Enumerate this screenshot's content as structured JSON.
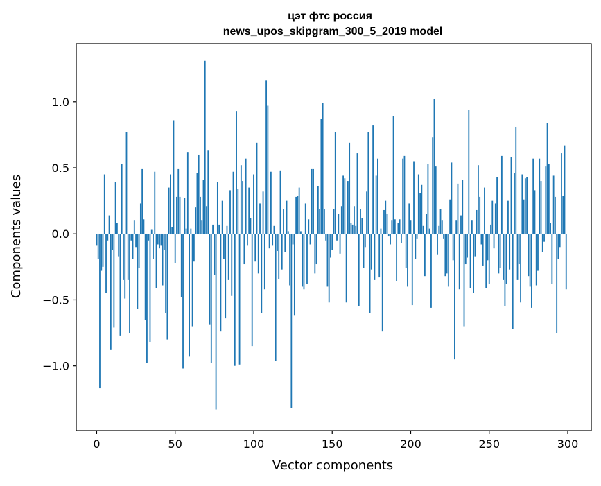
{
  "chart_data": {
    "type": "bar",
    "title_line1": "цэт фтс россия",
    "title_line2": "news_upos_skipgram_300_5_2019 model",
    "xlabel": "Vector components",
    "ylabel": "Components values",
    "xlim": [
      -13,
      315
    ],
    "ylim": [
      -1.49,
      1.44
    ],
    "xticks": [
      0,
      50,
      100,
      150,
      200,
      250,
      300
    ],
    "xtick_labels": [
      "0",
      "50",
      "100",
      "150",
      "200",
      "250",
      "300"
    ],
    "yticks": [
      -1.0,
      -0.5,
      0.0,
      0.5,
      1.0
    ],
    "ytick_labels": [
      "−1.0",
      "−0.5",
      "0.0",
      "0.5",
      "1.0"
    ],
    "grid": false,
    "bar_color": "#1f77b4",
    "values": [
      -0.09,
      -0.19,
      -1.17,
      -0.28,
      -0.25,
      0.45,
      -0.45,
      -0.05,
      0.14,
      -0.88,
      -0.12,
      -0.71,
      0.39,
      0.08,
      -0.17,
      -0.77,
      0.53,
      -0.35,
      -0.49,
      0.77,
      -0.35,
      -0.75,
      -0.05,
      -0.19,
      0.1,
      -0.1,
      -0.57,
      -0.26,
      0.23,
      0.49,
      0.11,
      -0.65,
      -0.98,
      -0.05,
      -0.82,
      0.03,
      -0.19,
      0.47,
      -0.41,
      -0.08,
      -0.11,
      -0.09,
      -0.39,
      -0.12,
      -0.6,
      -0.8,
      0.35,
      0.45,
      0.05,
      0.86,
      -0.22,
      0.28,
      0.49,
      0.28,
      -0.48,
      -1.02,
      0.27,
      0.04,
      0.62,
      -0.93,
      0.04,
      -0.7,
      -0.21,
      0.2,
      0.46,
      0.6,
      0.28,
      0.1,
      0.41,
      1.31,
      0.21,
      0.63,
      -0.69,
      -0.98,
      0.07,
      -0.31,
      -1.33,
      0.39,
      0.07,
      -0.74,
      0.25,
      -0.19,
      -0.64,
      0.06,
      -0.35,
      0.33,
      -0.47,
      0.47,
      -1.0,
      0.93,
      0.34,
      -0.99,
      0.52,
      0.4,
      -0.23,
      0.57,
      -0.09,
      0.35,
      0.12,
      -0.85,
      0.45,
      -0.21,
      0.69,
      -0.3,
      0.23,
      -0.6,
      0.32,
      -0.42,
      1.16,
      0.97,
      -0.11,
      0.47,
      -0.09,
      0.06,
      -0.96,
      -0.13,
      -0.34,
      0.48,
      -0.27,
      0.19,
      -0.14,
      0.25,
      0.02,
      -0.39,
      -1.32,
      -0.08,
      -0.62,
      0.28,
      0.29,
      0.35,
      0.02,
      -0.4,
      -0.42,
      0.23,
      -0.38,
      0.11,
      -0.08,
      0.49,
      0.49,
      -0.3,
      -0.23,
      0.36,
      0.19,
      0.87,
      0.99,
      0.19,
      -0.05,
      -0.4,
      -0.52,
      -0.18,
      -0.12,
      0.19,
      0.77,
      -0.05,
      0.15,
      -0.15,
      0.21,
      0.44,
      0.42,
      -0.52,
      0.4,
      0.69,
      0.08,
      0.07,
      0.21,
      0.06,
      0.61,
      -0.55,
      0.19,
      0.12,
      -0.26,
      -0.1,
      0.32,
      0.77,
      -0.6,
      -0.27,
      0.82,
      -0.35,
      0.44,
      0.57,
      -0.33,
      0.04,
      -0.74,
      0.18,
      0.25,
      0.15,
      -0.02,
      -0.08,
      0.1,
      0.89,
      0.11,
      -0.36,
      0.08,
      0.11,
      -0.07,
      0.57,
      0.59,
      -0.26,
      -0.4,
      0.23,
      0.1,
      -0.54,
      0.55,
      -0.19,
      -0.04,
      0.45,
      0.31,
      0.37,
      0.06,
      -0.32,
      0.15,
      0.53,
      0.04,
      -0.56,
      0.73,
      1.02,
      0.51,
      -0.16,
      0.06,
      0.19,
      0.1,
      -0.04,
      -0.32,
      -0.3,
      -0.4,
      0.26,
      0.54,
      -0.2,
      -0.95,
      0.1,
      0.38,
      -0.42,
      0.14,
      0.41,
      -0.7,
      -0.23,
      -0.18,
      0.94,
      -0.41,
      0.1,
      -0.45,
      -0.17,
      0.18,
      0.52,
      0.28,
      -0.08,
      -0.24,
      0.35,
      -0.41,
      -0.2,
      -0.38,
      0.07,
      0.25,
      -0.11,
      0.23,
      0.43,
      -0.3,
      -0.26,
      0.59,
      -0.35,
      -0.55,
      -0.38,
      0.25,
      -0.27,
      0.58,
      -0.72,
      0.46,
      0.81,
      -0.35,
      -0.23,
      -0.52,
      0.45,
      0.26,
      0.42,
      0.43,
      -0.32,
      -0.4,
      -0.56,
      0.57,
      0.33,
      -0.39,
      -0.28,
      0.57,
      0.4,
      -0.14,
      -0.06,
      0.51,
      0.84,
      0.53,
      0.08,
      -0.38,
      0.44,
      0.28,
      -0.75,
      -0.19,
      -0.1,
      0.61,
      0.29,
      0.67,
      -0.42
    ]
  }
}
